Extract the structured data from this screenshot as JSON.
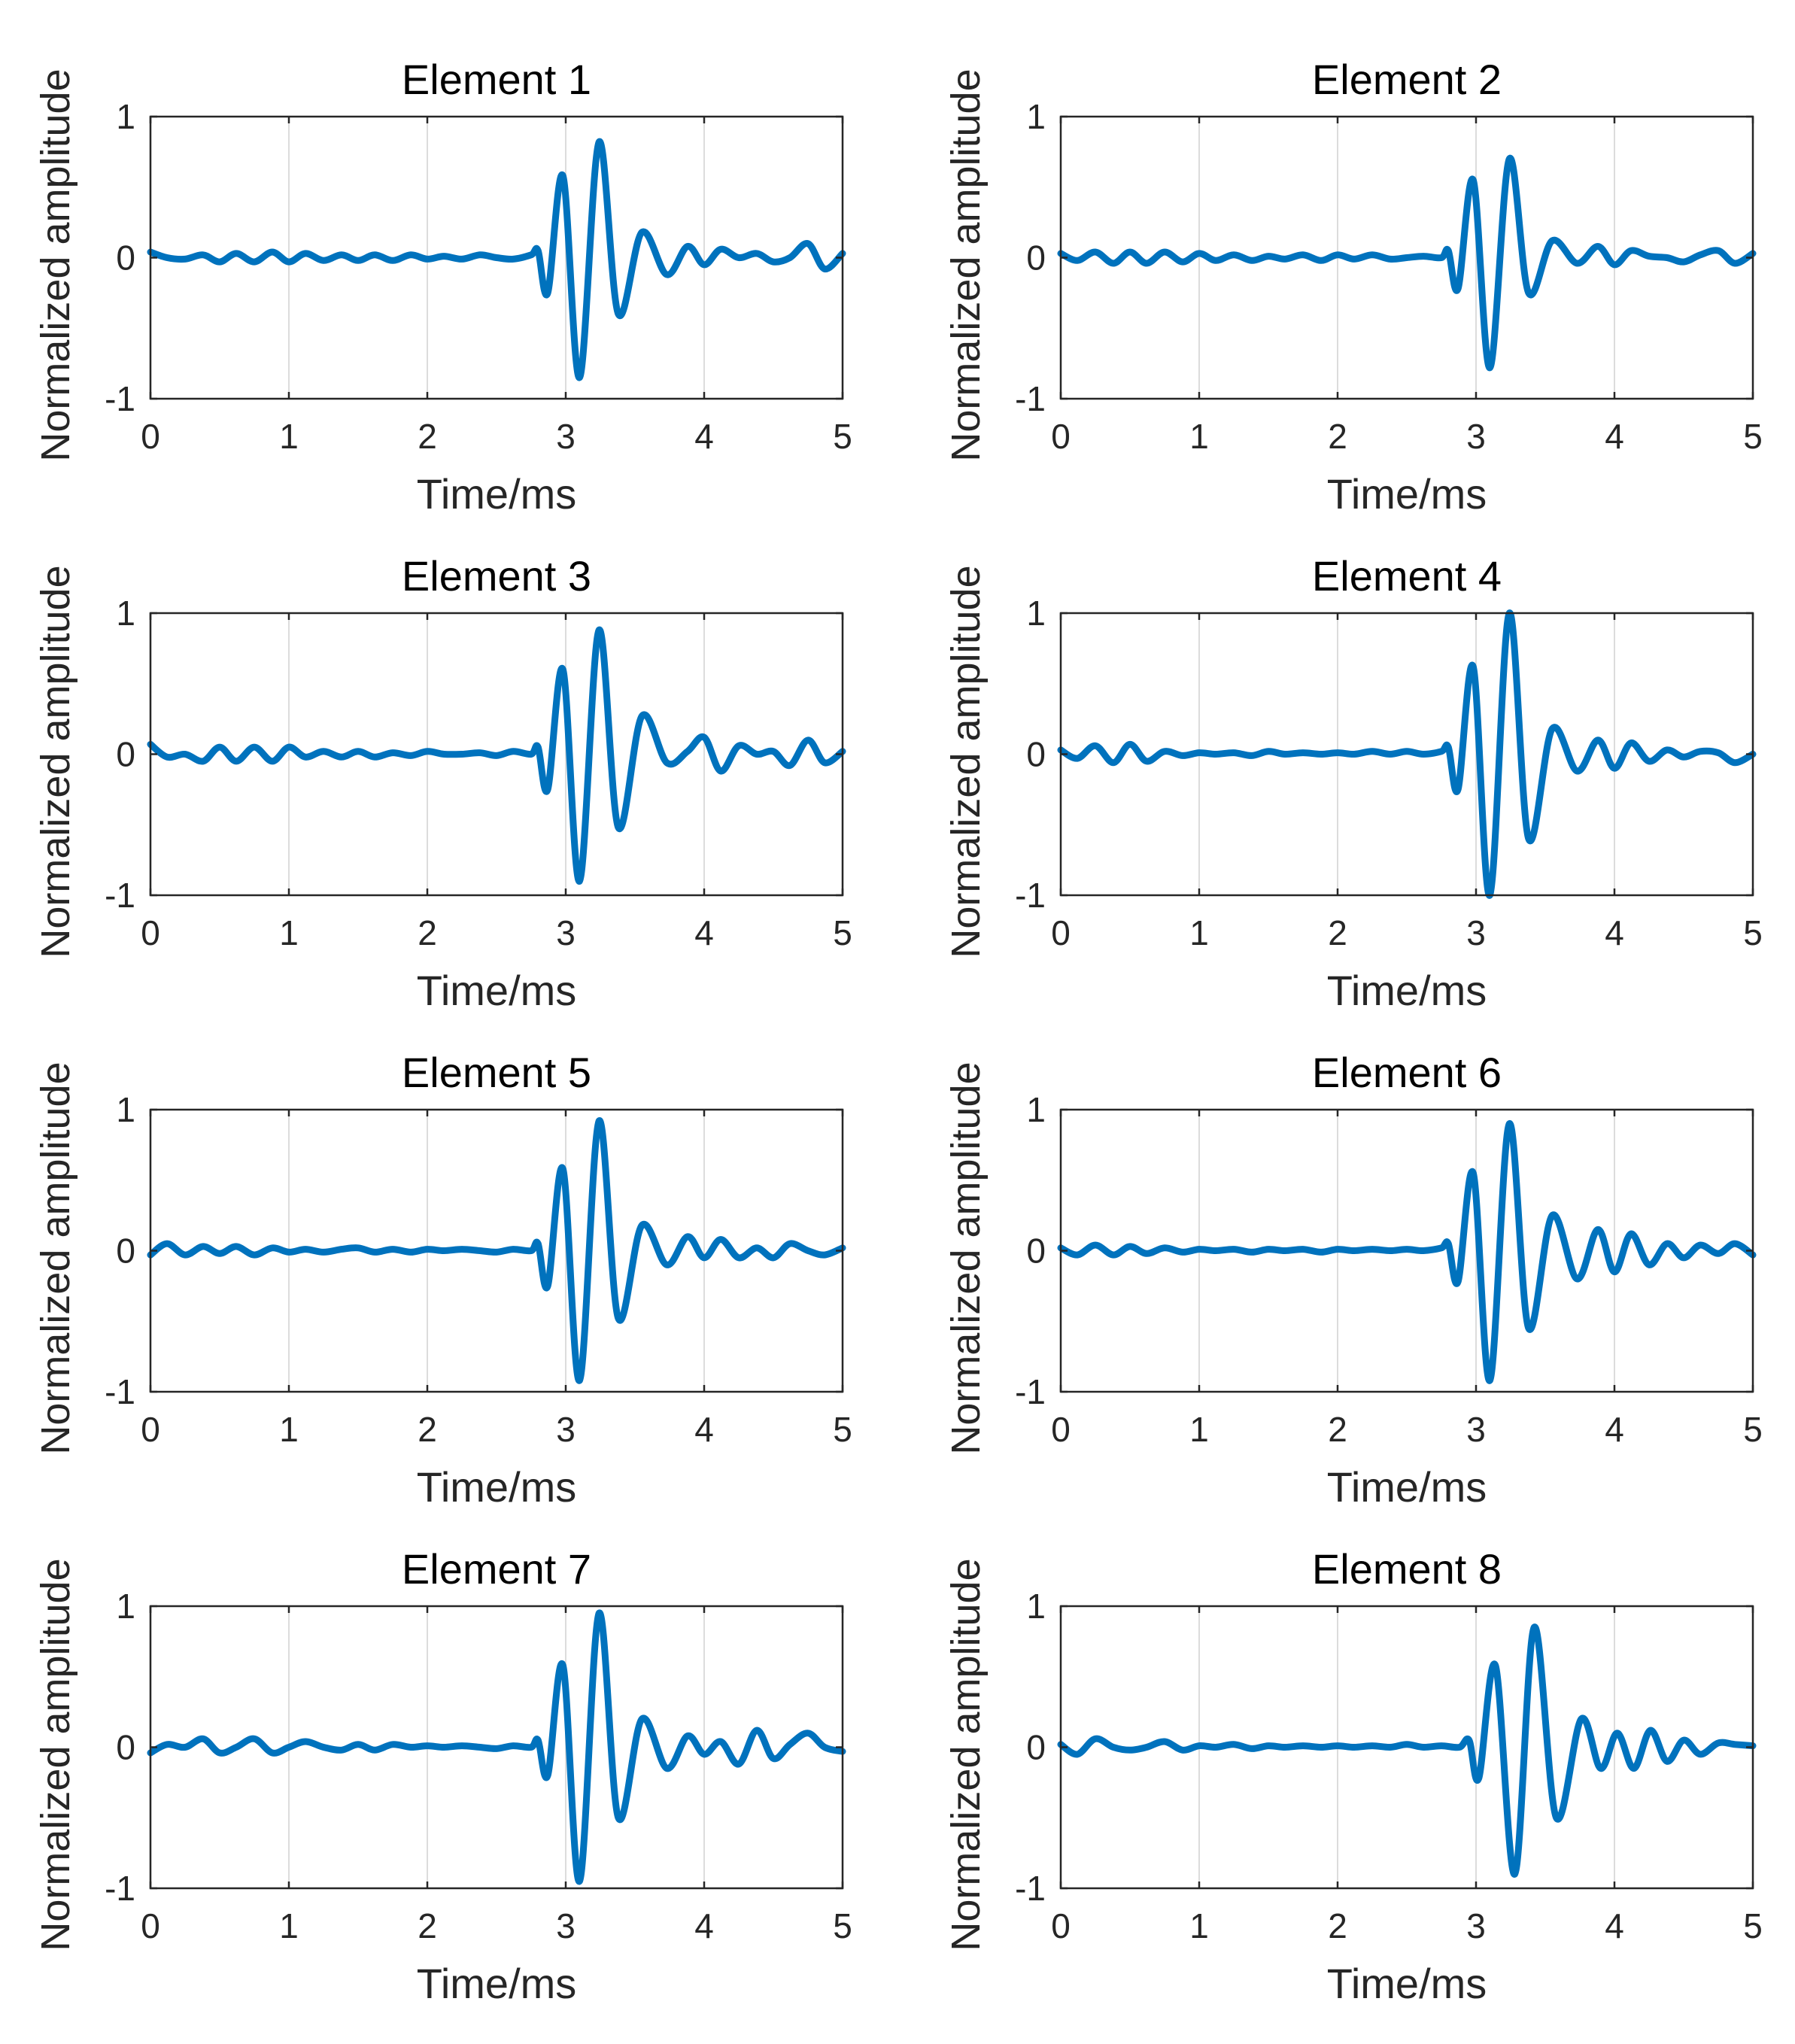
{
  "figure": {
    "line_color": "#0072BD"
  },
  "chart_data": [
    {
      "type": "line",
      "title": "Element 1",
      "xlabel": "Time/ms",
      "ylabel": "Normalized amplitude",
      "xlim": [
        0,
        5
      ],
      "ylim": [
        -1,
        1
      ],
      "xticks": [
        "0",
        "1",
        "2",
        "3",
        "4",
        "5"
      ],
      "yticks": [
        "1",
        "0",
        "-1"
      ],
      "grid": "vertical",
      "series": [
        {
          "name": "Element 1",
          "x": [
            0,
            0.12,
            0.25,
            0.38,
            0.5,
            0.62,
            0.75,
            0.88,
            1.0,
            1.12,
            1.25,
            1.38,
            1.5,
            1.62,
            1.75,
            1.88,
            2.0,
            2.12,
            2.25,
            2.38,
            2.5,
            2.62,
            2.75,
            2.8,
            2.87,
            2.98,
            3.1,
            3.24,
            3.38,
            3.55,
            3.73,
            3.88,
            4.0,
            4.12,
            4.25,
            4.38,
            4.5,
            4.62,
            4.75,
            4.87,
            5.0
          ],
          "y": [
            0.04,
            0.0,
            -0.01,
            0.02,
            -0.03,
            0.03,
            -0.03,
            0.04,
            -0.03,
            0.03,
            -0.02,
            0.02,
            -0.02,
            0.02,
            -0.02,
            0.02,
            -0.01,
            0.01,
            -0.01,
            0.02,
            0.0,
            -0.01,
            0.02,
            0.05,
            -0.25,
            0.58,
            -0.85,
            0.82,
            -0.4,
            0.18,
            -0.12,
            0.08,
            -0.05,
            0.06,
            0.0,
            0.03,
            -0.03,
            0.0,
            0.1,
            -0.08,
            0.03
          ]
        }
      ]
    },
    {
      "type": "line",
      "title": "Element 2",
      "xlabel": "Time/ms",
      "ylabel": "Normalized amplitude",
      "xlim": [
        0,
        5
      ],
      "ylim": [
        -1,
        1
      ],
      "xticks": [
        "0",
        "1",
        "2",
        "3",
        "4",
        "5"
      ],
      "yticks": [
        "1",
        "0",
        "-1"
      ],
      "grid": "vertical",
      "series": [
        {
          "name": "Element 2",
          "x": [
            0,
            0.12,
            0.25,
            0.38,
            0.5,
            0.62,
            0.75,
            0.88,
            1.0,
            1.12,
            1.25,
            1.38,
            1.5,
            1.62,
            1.75,
            1.88,
            2.0,
            2.12,
            2.25,
            2.38,
            2.5,
            2.62,
            2.75,
            2.8,
            2.87,
            2.98,
            3.1,
            3.24,
            3.38,
            3.55,
            3.73,
            3.88,
            4.0,
            4.12,
            4.25,
            4.38,
            4.5,
            4.62,
            4.75,
            4.87,
            5.0
          ],
          "y": [
            0.03,
            -0.02,
            0.04,
            -0.04,
            0.04,
            -0.04,
            0.04,
            -0.03,
            0.03,
            -0.02,
            0.02,
            -0.02,
            0.01,
            -0.01,
            0.02,
            -0.02,
            0.02,
            -0.01,
            0.02,
            -0.01,
            0.0,
            0.01,
            0.0,
            0.05,
            -0.22,
            0.55,
            -0.78,
            0.7,
            -0.25,
            0.12,
            -0.04,
            0.08,
            -0.05,
            0.05,
            0.01,
            0.0,
            -0.03,
            0.02,
            0.05,
            -0.04,
            0.03
          ]
        }
      ]
    },
    {
      "type": "line",
      "title": "Element 3",
      "xlabel": "Time/ms",
      "ylabel": "Normalized amplitude",
      "xlim": [
        0,
        5
      ],
      "ylim": [
        -1,
        1
      ],
      "xticks": [
        "0",
        "1",
        "2",
        "3",
        "4",
        "5"
      ],
      "yticks": [
        "1",
        "0",
        "-1"
      ],
      "grid": "vertical",
      "series": [
        {
          "name": "Element 3",
          "x": [
            0,
            0.12,
            0.25,
            0.38,
            0.5,
            0.62,
            0.75,
            0.88,
            1.0,
            1.12,
            1.25,
            1.38,
            1.5,
            1.62,
            1.75,
            1.88,
            2.0,
            2.12,
            2.25,
            2.38,
            2.5,
            2.62,
            2.75,
            2.8,
            2.87,
            2.98,
            3.1,
            3.24,
            3.38,
            3.55,
            3.73,
            3.88,
            4.0,
            4.12,
            4.25,
            4.38,
            4.5,
            4.62,
            4.75,
            4.87,
            5.0
          ],
          "y": [
            0.07,
            -0.02,
            0.0,
            -0.05,
            0.05,
            -0.05,
            0.05,
            -0.05,
            0.05,
            -0.02,
            0.02,
            -0.02,
            0.02,
            -0.02,
            0.01,
            -0.01,
            0.02,
            0.0,
            0.0,
            0.01,
            -0.01,
            0.02,
            0.0,
            0.05,
            -0.25,
            0.6,
            -0.9,
            0.88,
            -0.52,
            0.27,
            -0.06,
            0.02,
            0.12,
            -0.12,
            0.06,
            0.0,
            0.02,
            -0.08,
            0.1,
            -0.06,
            0.02
          ]
        }
      ]
    },
    {
      "type": "line",
      "title": "Element 4",
      "xlabel": "Time/ms",
      "ylabel": "Normalized amplitude",
      "xlim": [
        0,
        5
      ],
      "ylim": [
        -1,
        1
      ],
      "xticks": [
        "0",
        "1",
        "2",
        "3",
        "4",
        "5"
      ],
      "yticks": [
        "1",
        "0",
        "-1"
      ],
      "grid": "vertical",
      "series": [
        {
          "name": "Element 4",
          "x": [
            0,
            0.12,
            0.25,
            0.38,
            0.5,
            0.62,
            0.75,
            0.88,
            1.0,
            1.12,
            1.25,
            1.38,
            1.5,
            1.62,
            1.75,
            1.88,
            2.0,
            2.12,
            2.25,
            2.38,
            2.5,
            2.62,
            2.75,
            2.8,
            2.87,
            2.98,
            3.1,
            3.24,
            3.38,
            3.55,
            3.73,
            3.88,
            4.0,
            4.12,
            4.25,
            4.38,
            4.5,
            4.62,
            4.75,
            4.87,
            5.0
          ],
          "y": [
            0.03,
            -0.03,
            0.06,
            -0.06,
            0.07,
            -0.05,
            0.02,
            -0.01,
            0.01,
            0.0,
            0.01,
            -0.01,
            0.02,
            0.0,
            0.01,
            0.0,
            0.01,
            0.0,
            0.02,
            0.0,
            0.02,
            0.0,
            0.02,
            0.05,
            -0.25,
            0.62,
            -1.0,
            1.0,
            -0.6,
            0.18,
            -0.12,
            0.1,
            -0.1,
            0.08,
            -0.05,
            0.03,
            -0.02,
            0.02,
            0.01,
            -0.06,
            0.0
          ]
        }
      ]
    },
    {
      "type": "line",
      "title": "Element 5",
      "xlabel": "Time/ms",
      "ylabel": "Normalized amplitude",
      "xlim": [
        0,
        5
      ],
      "ylim": [
        -1,
        1
      ],
      "xticks": [
        "0",
        "1",
        "2",
        "3",
        "4",
        "5"
      ],
      "yticks": [
        "1",
        "0",
        "-1"
      ],
      "grid": "vertical",
      "series": [
        {
          "name": "Element 5",
          "x": [
            0,
            0.12,
            0.25,
            0.38,
            0.5,
            0.62,
            0.75,
            0.88,
            1.0,
            1.12,
            1.25,
            1.38,
            1.5,
            1.62,
            1.75,
            1.88,
            2.0,
            2.12,
            2.25,
            2.38,
            2.5,
            2.62,
            2.75,
            2.8,
            2.87,
            2.98,
            3.1,
            3.24,
            3.38,
            3.55,
            3.73,
            3.88,
            4.0,
            4.12,
            4.25,
            4.38,
            4.5,
            4.62,
            4.75,
            4.87,
            5.0
          ],
          "y": [
            -0.03,
            0.05,
            -0.03,
            0.03,
            -0.02,
            0.03,
            -0.03,
            0.02,
            -0.01,
            0.01,
            -0.01,
            0.01,
            0.02,
            -0.01,
            0.01,
            -0.01,
            0.01,
            0.0,
            0.01,
            0.0,
            -0.01,
            0.01,
            0.0,
            0.05,
            -0.25,
            0.58,
            -0.92,
            0.92,
            -0.48,
            0.18,
            -0.1,
            0.1,
            -0.05,
            0.08,
            -0.05,
            0.02,
            -0.05,
            0.05,
            0.0,
            -0.03,
            0.02
          ]
        }
      ]
    },
    {
      "type": "line",
      "title": "Element 6",
      "xlabel": "Time/ms",
      "ylabel": "Normalized amplitude",
      "xlim": [
        0,
        5
      ],
      "ylim": [
        -1,
        1
      ],
      "xticks": [
        "0",
        "1",
        "2",
        "3",
        "4",
        "5"
      ],
      "yticks": [
        "1",
        "0",
        "-1"
      ],
      "grid": "vertical",
      "series": [
        {
          "name": "Element 6",
          "x": [
            0,
            0.12,
            0.25,
            0.38,
            0.5,
            0.62,
            0.75,
            0.88,
            1.0,
            1.12,
            1.25,
            1.38,
            1.5,
            1.62,
            1.75,
            1.88,
            2.0,
            2.12,
            2.25,
            2.38,
            2.5,
            2.62,
            2.75,
            2.8,
            2.87,
            2.98,
            3.1,
            3.24,
            3.38,
            3.55,
            3.73,
            3.88,
            4.0,
            4.12,
            4.25,
            4.38,
            4.5,
            4.62,
            4.75,
            4.87,
            5.0
          ],
          "y": [
            0.02,
            -0.03,
            0.04,
            -0.03,
            0.03,
            -0.02,
            0.02,
            -0.01,
            0.01,
            0.0,
            0.01,
            -0.01,
            0.01,
            0.0,
            0.01,
            -0.01,
            0.01,
            0.0,
            0.01,
            0.0,
            0.01,
            0.0,
            0.02,
            0.05,
            -0.22,
            0.55,
            -0.92,
            0.9,
            -0.55,
            0.25,
            -0.2,
            0.15,
            -0.15,
            0.12,
            -0.1,
            0.05,
            -0.05,
            0.04,
            -0.02,
            0.05,
            -0.03
          ]
        }
      ]
    },
    {
      "type": "line",
      "title": "Element 7",
      "xlabel": "Time/ms",
      "ylabel": "Normalized amplitude",
      "xlim": [
        0,
        5
      ],
      "ylim": [
        -1,
        1
      ],
      "xticks": [
        "0",
        "1",
        "2",
        "3",
        "4",
        "5"
      ],
      "yticks": [
        "1",
        "0",
        "-1"
      ],
      "grid": "vertical",
      "series": [
        {
          "name": "Element 7",
          "x": [
            0,
            0.12,
            0.25,
            0.38,
            0.5,
            0.62,
            0.75,
            0.88,
            1.0,
            1.12,
            1.25,
            1.38,
            1.5,
            1.62,
            1.75,
            1.88,
            2.0,
            2.12,
            2.25,
            2.38,
            2.5,
            2.62,
            2.75,
            2.8,
            2.87,
            2.98,
            3.1,
            3.24,
            3.38,
            3.55,
            3.73,
            3.88,
            4.0,
            4.12,
            4.25,
            4.38,
            4.5,
            4.62,
            4.75,
            4.87,
            5.0
          ],
          "y": [
            -0.04,
            0.02,
            0.0,
            0.06,
            -0.04,
            0.0,
            0.06,
            -0.04,
            0.0,
            0.04,
            0.0,
            -0.02,
            0.02,
            -0.02,
            0.02,
            0.0,
            0.01,
            0.0,
            0.01,
            0.0,
            -0.01,
            0.01,
            0.0,
            0.05,
            -0.2,
            0.58,
            -0.95,
            0.95,
            -0.5,
            0.2,
            -0.15,
            0.08,
            -0.05,
            0.04,
            -0.12,
            0.12,
            -0.08,
            0.02,
            0.1,
            0.0,
            -0.03
          ]
        }
      ]
    },
    {
      "type": "line",
      "title": "Element 8",
      "xlabel": "Time/ms",
      "ylabel": "Normalized amplitude",
      "xlim": [
        0,
        5
      ],
      "ylim": [
        -1,
        1
      ],
      "xticks": [
        "0",
        "1",
        "2",
        "3",
        "4",
        "5"
      ],
      "yticks": [
        "1",
        "0",
        "-1"
      ],
      "grid": "vertical",
      "series": [
        {
          "name": "Element 8",
          "x": [
            0,
            0.12,
            0.25,
            0.38,
            0.5,
            0.62,
            0.75,
            0.88,
            1.0,
            1.12,
            1.25,
            1.38,
            1.5,
            1.62,
            1.75,
            1.88,
            2.0,
            2.12,
            2.25,
            2.38,
            2.5,
            2.62,
            2.75,
            2.88,
            2.95,
            3.02,
            3.14,
            3.28,
            3.42,
            3.58,
            3.76,
            3.9,
            4.02,
            4.14,
            4.26,
            4.38,
            4.5,
            4.62,
            4.75,
            4.87,
            5.0
          ],
          "y": [
            0.02,
            -0.05,
            0.06,
            0.0,
            -0.02,
            0.0,
            0.04,
            -0.02,
            0.01,
            0.0,
            0.02,
            -0.01,
            0.01,
            0.0,
            0.01,
            0.0,
            0.01,
            0.0,
            0.01,
            0.0,
            0.02,
            0.0,
            0.01,
            0.0,
            0.05,
            -0.22,
            0.58,
            -0.9,
            0.85,
            -0.5,
            0.2,
            -0.15,
            0.1,
            -0.15,
            0.12,
            -0.1,
            0.05,
            -0.05,
            0.03,
            0.02,
            0.01
          ]
        }
      ]
    }
  ]
}
